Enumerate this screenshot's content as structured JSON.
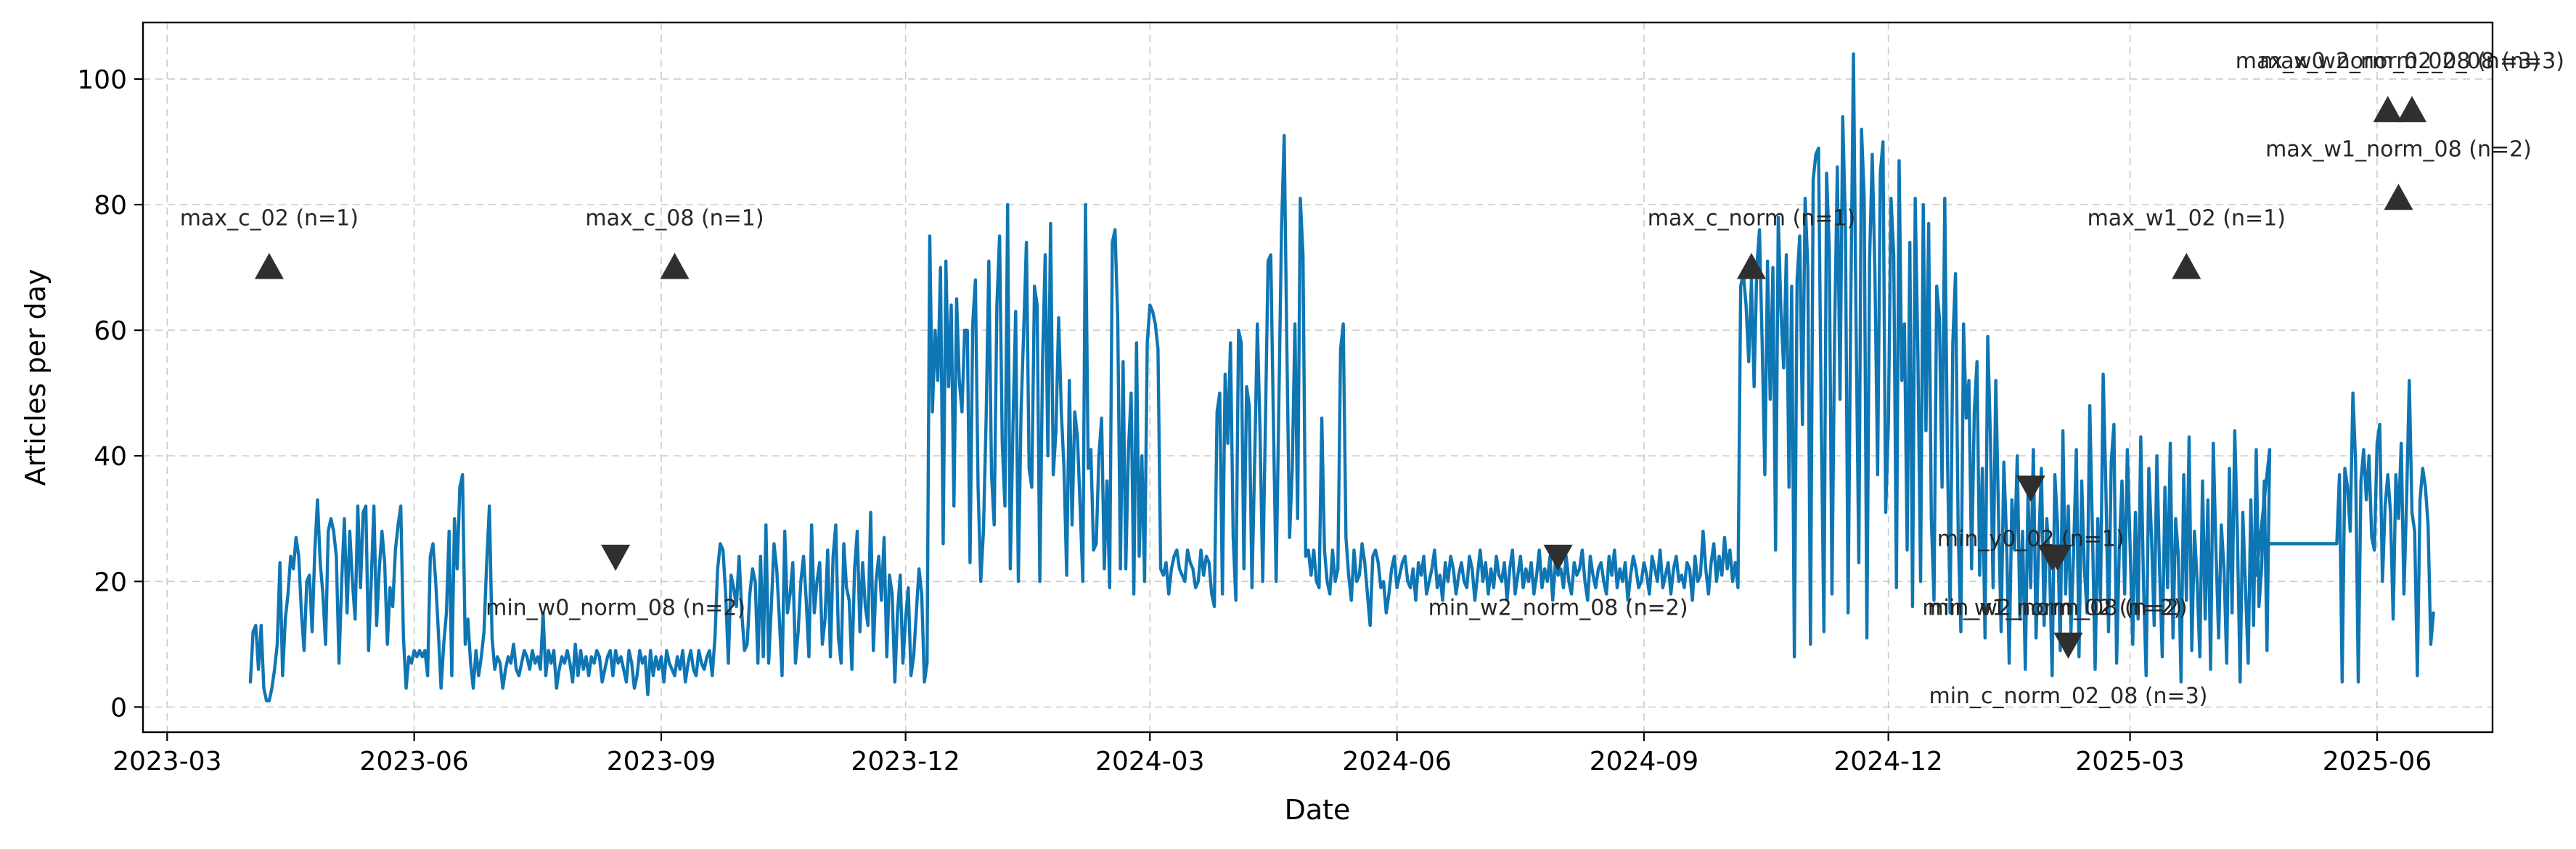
{
  "colors": {
    "series": "#0f76b4",
    "marker": "#2f2f2f",
    "annotation_text": "#262626",
    "grid": "#b0b0b0"
  },
  "chart_data": {
    "type": "line",
    "title": "",
    "xlabel": "Date",
    "ylabel": "Articles per day",
    "xlim": [
      "2023-02-20",
      "2025-07-14"
    ],
    "ylim": [
      -4,
      109
    ],
    "grid": true,
    "x_ticks": [
      {
        "date": "2023-03-01",
        "label": "2023-03"
      },
      {
        "date": "2023-06-01",
        "label": "2023-06"
      },
      {
        "date": "2023-09-01",
        "label": "2023-09"
      },
      {
        "date": "2023-12-01",
        "label": "2023-12"
      },
      {
        "date": "2024-03-01",
        "label": "2024-03"
      },
      {
        "date": "2024-06-01",
        "label": "2024-06"
      },
      {
        "date": "2024-09-01",
        "label": "2024-09"
      },
      {
        "date": "2024-12-01",
        "label": "2024-12"
      },
      {
        "date": "2025-03-01",
        "label": "2025-03"
      },
      {
        "date": "2025-06-01",
        "label": "2025-06"
      }
    ],
    "y_ticks": [
      0,
      20,
      40,
      60,
      80,
      100
    ],
    "series": [
      {
        "segments": [
          {
            "start": "2023-04-01",
            "values": [
              4,
              12,
              13,
              6,
              13,
              3,
              1,
              1,
              3,
              6,
              10,
              23,
              5,
              14,
              18,
              24,
              22,
              27,
              24,
              15,
              9,
              20,
              21,
              12,
              25,
              33,
              23,
              18,
              10,
              28,
              30,
              28,
              24,
              7,
              20,
              30,
              15,
              28,
              20,
              14,
              32,
              19,
              31,
              32,
              9,
              20,
              32,
              13,
              22,
              28,
              23,
              10,
              19,
              16,
              25,
              29,
              32,
              11,
              3,
              8,
              7,
              9,
              8,
              9,
              8,
              9,
              5,
              24,
              26,
              20,
              12,
              3,
              10,
              15,
              28,
              5,
              30,
              22,
              35,
              37,
              10,
              14,
              7,
              3,
              9,
              5,
              8,
              12,
              23,
              32,
              11,
              6,
              8,
              7,
              3,
              6,
              8,
              7,
              10,
              6,
              5,
              7,
              9,
              8,
              6,
              9,
              7,
              8,
              6,
              15,
              5,
              9,
              7,
              9,
              3,
              6,
              8,
              7,
              9,
              7,
              4,
              10,
              5,
              9,
              6,
              8,
              5,
              8,
              7,
              9,
              8,
              4,
              6,
              8,
              9,
              5,
              9,
              7,
              8,
              6,
              4,
              9,
              7,
              3,
              5,
              9,
              7,
              8,
              2,
              9,
              5,
              8,
              6,
              8,
              4,
              9,
              7,
              6,
              5,
              8,
              6,
              9,
              4,
              7,
              9,
              6,
              5,
              9,
              7,
              6,
              8,
              9,
              5,
              11,
              22,
              26,
              25,
              18,
              7,
              21,
              19,
              16,
              24,
              15,
              9,
              10,
              18,
              22,
              20,
              7,
              24,
              8,
              29,
              7,
              16,
              26,
              22,
              14,
              5,
              28,
              15,
              18,
              23,
              7,
              12,
              20,
              24,
              17,
              8,
              29,
              15,
              20,
              23,
              10,
              14,
              25,
              8,
              24,
              29,
              11,
              7,
              26,
              19,
              17,
              6,
              22,
              28,
              12,
              23,
              16,
              13,
              31,
              9,
              20,
              24,
              17,
              27,
              8,
              21,
              18,
              4,
              15,
              21,
              7,
              14,
              19,
              5,
              8,
              15,
              22,
              18,
              4,
              7,
              75,
              47,
              60,
              52,
              70,
              26,
              71,
              51,
              64,
              32,
              65,
              52,
              47,
              60,
              60,
              23,
              61,
              68,
              35,
              20,
              28,
              46,
              71,
              37,
              29,
              64,
              75,
              42,
              32,
              80,
              22,
              45,
              63,
              20,
              47,
              60,
              74,
              38,
              35,
              67,
              64,
              20,
              55,
              72,
              40,
              77,
              37,
              44,
              62,
              47,
              38,
              21,
              52,
              29,
              47,
              43,
              32,
              20,
              80,
              38,
              41,
              25,
              26,
              40,
              46,
              22,
              36,
              19,
              74,
              76,
              62,
              22,
              55,
              22,
              41,
              50,
              18,
              58,
              24,
              40,
              20,
              58,
              64,
              63,
              61,
              57,
              22,
              21,
              23,
              18,
              22,
              24,
              25,
              22,
              21,
              20,
              25,
              23,
              22,
              19,
              20,
              25,
              21,
              24,
              23,
              18,
              16,
              47,
              50,
              18,
              53,
              42,
              58,
              27,
              17,
              60,
              58,
              22,
              51,
              48,
              19,
              39,
              61,
              44,
              20,
              45,
              71,
              72,
              45,
              20,
              48,
              76,
              91,
              57,
              27,
              38,
              61,
              30,
              81,
              72,
              24,
              25,
              21,
              25,
              20,
              19,
              46,
              25,
              20,
              18,
              25,
              20,
              22,
              57,
              61,
              27,
              21,
              17,
              25,
              20,
              21,
              26,
              23,
              18,
              13,
              24,
              25,
              23,
              19,
              20,
              15,
              18,
              22,
              24,
              19,
              21,
              23,
              24,
              20,
              19,
              22,
              17,
              23,
              21,
              24,
              18,
              20,
              22,
              25,
              19,
              21,
              17,
              23,
              20,
              24,
              22,
              18,
              21,
              23,
              20,
              19,
              24,
              22,
              17,
              21,
              25,
              20,
              23,
              18,
              22,
              19,
              24,
              21,
              20,
              23,
              17,
              22,
              25,
              18,
              21,
              24,
              19,
              22,
              20,
              23,
              18,
              21,
              25,
              19,
              22,
              20,
              24,
              17,
              23,
              21,
              22,
              19,
              24,
              20,
              18,
              23,
              21,
              22,
              25,
              20,
              17,
              24,
              21,
              19,
              22,
              23,
              20,
              18,
              24,
              21,
              25,
              19,
              22,
              20,
              23,
              17,
              21,
              24,
              22,
              19,
              20,
              23,
              21,
              18,
              24,
              22,
              20,
              25,
              19,
              21,
              23,
              18,
              22,
              24,
              20,
              21,
              19,
              23,
              22,
              17,
              24,
              20,
              21,
              28,
              22,
              18,
              23,
              26,
              20,
              24,
              21,
              27,
              22,
              25,
              20,
              23,
              19,
              67,
              69,
              64,
              55,
              68,
              51,
              70,
              76,
              58,
              37,
              71,
              49,
              70,
              25,
              78,
              63,
              54,
              72,
              35,
              67,
              8,
              68,
              75,
              45,
              81,
              70,
              10,
              84,
              88,
              89,
              46,
              12,
              85,
              73,
              18,
              60,
              86,
              49,
              94,
              77,
              15,
              64,
              104,
              60,
              23,
              92,
              81,
              11,
              71,
              88,
              69,
              37,
              85,
              90,
              31,
              45,
              81,
              72,
              19,
              87,
              52,
              61,
              25,
              74,
              16,
              81,
              56,
              20,
              80,
              44,
              77,
              30,
              17,
              67,
              62,
              35,
              81,
              40,
              15,
              58,
              69,
              28,
              12,
              61,
              46,
              52,
              22,
              47,
              55,
              21,
              38,
              11,
              59,
              43,
              19,
              52,
              31,
              12,
              39,
              27,
              7,
              33,
              25,
              40,
              14,
              28,
              6,
              34,
              19,
              41,
              11,
              26,
              38,
              13,
              30,
              23,
              5,
              37,
              29,
              9,
              44,
              18,
              32,
              12,
              25,
              41,
              8,
              36,
              22,
              15,
              48,
              28,
              6,
              30,
              17,
              53,
              35,
              12,
              39,
              45,
              7,
              25,
              36,
              18,
              41,
              26,
              10,
              31,
              14,
              43,
              20,
              5,
              38,
              27,
              13,
              40,
              22,
              8,
              35,
              19,
              42,
              11,
              30,
              24,
              4,
              37,
              17,
              43,
              9,
              28,
              20,
              8,
              36,
              14,
              33,
              6,
              42,
              25,
              11,
              29,
              22,
              7,
              38,
              15,
              44,
              27,
              4,
              31,
              19,
              7,
              33,
              13,
              41,
              16,
              22,
              36,
              9,
              41
            ]
          },
          {
            "start": "2025-04-17",
            "values": [
              21,
              26
            ]
          },
          {
            "start": "2025-05-17",
            "values": [
              26,
              37,
              4,
              38,
              35,
              28,
              50,
              39,
              4,
              36,
              41,
              33,
              40,
              27,
              25,
              42,
              45,
              20,
              32,
              37,
              31,
              14,
              37,
              30,
              42,
              18,
              33,
              52,
              31,
              28,
              5,
              33,
              38,
              35,
              29,
              10,
              15
            ]
          }
        ]
      }
    ],
    "annotations": [
      {
        "label": "max_c_02 (n=1)",
        "x": "2023-04-08",
        "y": 70,
        "marker": "up"
      },
      {
        "label": "max_c_08 (n=1)",
        "x": "2023-09-06",
        "y": 70,
        "marker": "up"
      },
      {
        "label": "min_w0_norm_08 (n=2)",
        "x": "2023-08-15",
        "y": 24,
        "marker": "down"
      },
      {
        "label": "min_w2_norm_08 (n=2)",
        "x": "2024-07-31",
        "y": 24,
        "marker": "down"
      },
      {
        "label": "max_c_norm (n=1)",
        "x": "2024-10-11",
        "y": 70,
        "marker": "up"
      },
      {
        "label": "max_w1_02 (n=1)",
        "x": "2025-03-22",
        "y": 70,
        "marker": "up"
      },
      {
        "label": "min_y0_02 (n=1)",
        "x": "2025-01-23",
        "y": 35,
        "marker": "down"
      },
      {
        "label": "min_w1_norm_02 (n=2)",
        "x": "2025-01-31",
        "y": 24,
        "marker": "down"
      },
      {
        "label": "min_w2_norm_08 (n=2)",
        "x": "2025-02-02",
        "y": 24,
        "marker": "down"
      },
      {
        "label": "min_c_norm_02_08 (n=3)",
        "x": "2025-02-06",
        "y": 10,
        "marker": "down"
      },
      {
        "label": "max_w0_norm_02_08 (n=3)",
        "x": "2025-06-05",
        "y": 95,
        "marker": "up"
      },
      {
        "label": "max_w2_norm_02_08 (n=3)",
        "x": "2025-06-14",
        "y": 95,
        "marker": "up"
      },
      {
        "label": "max_w1_norm_08 (n=2)",
        "x": "2025-06-09",
        "y": 81,
        "marker": "up"
      }
    ]
  }
}
